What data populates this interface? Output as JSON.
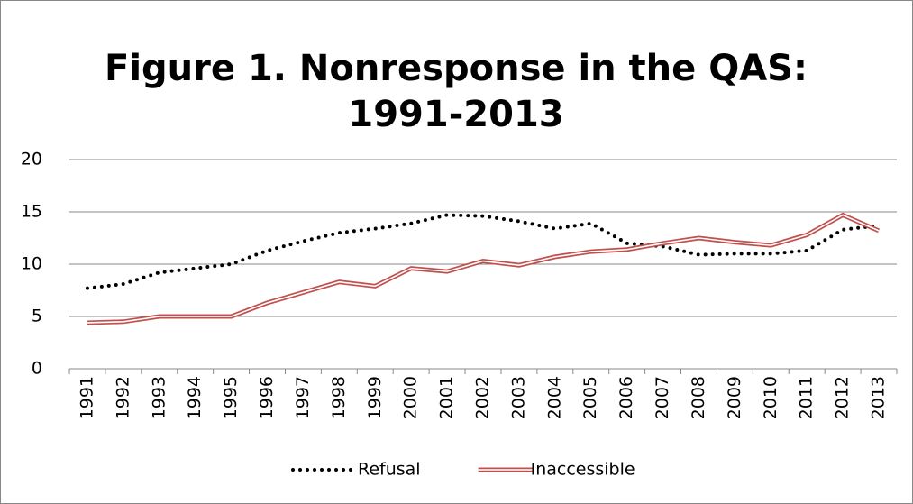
{
  "chart_data": {
    "type": "line",
    "title": [
      "Figure 1. Nonresponse in the QAS:",
      "1991-2013"
    ],
    "categories": [
      "1991",
      "1992",
      "1993",
      "1994",
      "1995",
      "1996",
      "1997",
      "1998",
      "1999",
      "2000",
      "2001",
      "2002",
      "2003",
      "2004",
      "2005",
      "2006",
      "2007",
      "2008",
      "2009",
      "2010",
      "2011",
      "2012",
      "2013"
    ],
    "series": [
      {
        "name": "Refusal",
        "color": "#000000",
        "style": "dotted",
        "values": [
          7.7,
          8.1,
          9.2,
          9.6,
          10.0,
          11.3,
          12.2,
          13.0,
          13.4,
          13.9,
          14.7,
          14.6,
          14.1,
          13.4,
          13.9,
          12.0,
          11.7,
          10.9,
          11.0,
          11.0,
          11.3,
          13.3,
          13.7
        ]
      },
      {
        "name": "Inaccessible",
        "color": "#c0504d",
        "style": "double",
        "values": [
          4.4,
          4.5,
          5.0,
          5.0,
          5.0,
          6.3,
          7.3,
          8.3,
          7.9,
          9.6,
          9.3,
          10.3,
          9.9,
          10.7,
          11.2,
          11.4,
          12.0,
          12.5,
          12.1,
          11.8,
          12.8,
          14.7,
          13.2
        ]
      }
    ],
    "ylim": [
      0,
      20
    ],
    "yticks": [
      0,
      5,
      10,
      15,
      20
    ],
    "grid": true,
    "legend": "bottom"
  }
}
